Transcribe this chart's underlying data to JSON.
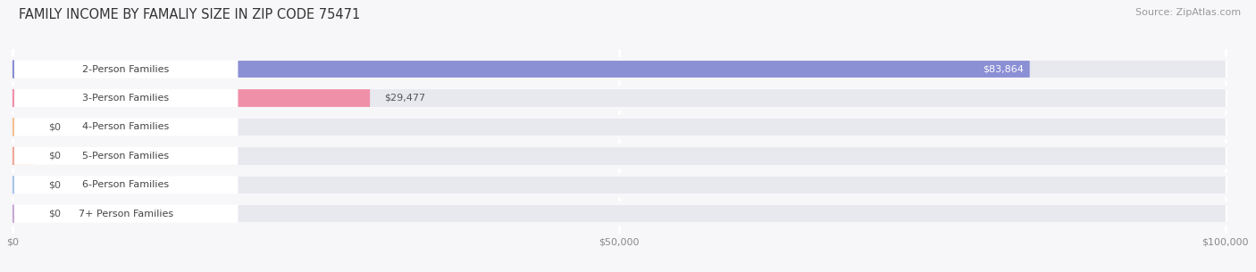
{
  "title": "FAMILY INCOME BY FAMALIY SIZE IN ZIP CODE 75471",
  "source": "Source: ZipAtlas.com",
  "categories": [
    "2-Person Families",
    "3-Person Families",
    "4-Person Families",
    "5-Person Families",
    "6-Person Families",
    "7+ Person Families"
  ],
  "values": [
    83864,
    29477,
    0,
    0,
    0,
    0
  ],
  "bar_colors": [
    "#8b8fd4",
    "#f090a8",
    "#f5c090",
    "#f0a898",
    "#a8c4e8",
    "#c8aad4"
  ],
  "xlim": [
    0,
    100000
  ],
  "xticks": [
    0,
    50000,
    100000
  ],
  "xticklabels": [
    "$0",
    "$50,000",
    "$100,000"
  ],
  "background_color": "#f7f7fa",
  "bar_bg_color": "#e8e8ef",
  "bar_sep_color": "#ffffff",
  "title_fontsize": 10.5,
  "source_fontsize": 8,
  "label_fontsize": 8,
  "value_fontsize": 8
}
